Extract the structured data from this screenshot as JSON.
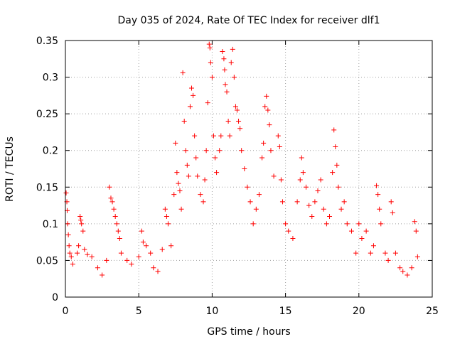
{
  "chart_data": {
    "type": "scatter",
    "title": "Day 035 of 2024, Rate Of TEC Index for receiver dlf1",
    "xlabel": "GPS time / hours",
    "ylabel": "ROTI / TECUs",
    "xlim": [
      0,
      25
    ],
    "ylim": [
      0,
      0.35
    ],
    "xticks": [
      0,
      5,
      10,
      15,
      20,
      25
    ],
    "yticks": [
      0,
      0.05,
      0.1,
      0.15,
      0.2,
      0.25,
      0.3,
      0.35
    ],
    "grid": true,
    "marker": "+",
    "marker_color": "#ff0000",
    "series": [
      {
        "points": [
          [
            0.05,
            0.142
          ],
          [
            0.1,
            0.13
          ],
          [
            0.12,
            0.118
          ],
          [
            0.15,
            0.1
          ],
          [
            0.2,
            0.085
          ],
          [
            0.25,
            0.07
          ],
          [
            0.3,
            0.06
          ],
          [
            0.4,
            0.055
          ],
          [
            0.5,
            0.045
          ],
          [
            0.8,
            0.06
          ],
          [
            0.9,
            0.07
          ],
          [
            1.0,
            0.11
          ],
          [
            1.05,
            0.105
          ],
          [
            1.1,
            0.1
          ],
          [
            1.2,
            0.09
          ],
          [
            1.3,
            0.065
          ],
          [
            1.5,
            0.058
          ],
          [
            1.8,
            0.055
          ],
          [
            2.2,
            0.04
          ],
          [
            2.5,
            0.03
          ],
          [
            2.8,
            0.05
          ],
          [
            3.0,
            0.15
          ],
          [
            3.1,
            0.135
          ],
          [
            3.2,
            0.13
          ],
          [
            3.3,
            0.12
          ],
          [
            3.4,
            0.11
          ],
          [
            3.5,
            0.1
          ],
          [
            3.6,
            0.09
          ],
          [
            3.7,
            0.08
          ],
          [
            3.8,
            0.06
          ],
          [
            4.2,
            0.05
          ],
          [
            4.5,
            0.045
          ],
          [
            5.0,
            0.055
          ],
          [
            5.2,
            0.09
          ],
          [
            5.3,
            0.075
          ],
          [
            5.5,
            0.07
          ],
          [
            5.8,
            0.06
          ],
          [
            6.0,
            0.04
          ],
          [
            6.3,
            0.035
          ],
          [
            6.6,
            0.065
          ],
          [
            6.8,
            0.12
          ],
          [
            6.9,
            0.11
          ],
          [
            7.0,
            0.1
          ],
          [
            7.2,
            0.07
          ],
          [
            7.4,
            0.14
          ],
          [
            7.5,
            0.21
          ],
          [
            7.6,
            0.17
          ],
          [
            7.7,
            0.155
          ],
          [
            7.8,
            0.145
          ],
          [
            7.9,
            0.12
          ],
          [
            8.0,
            0.306
          ],
          [
            8.1,
            0.24
          ],
          [
            8.2,
            0.2
          ],
          [
            8.3,
            0.18
          ],
          [
            8.4,
            0.165
          ],
          [
            8.5,
            0.26
          ],
          [
            8.6,
            0.285
          ],
          [
            8.7,
            0.275
          ],
          [
            8.8,
            0.22
          ],
          [
            8.9,
            0.19
          ],
          [
            9.0,
            0.165
          ],
          [
            9.2,
            0.14
          ],
          [
            9.4,
            0.13
          ],
          [
            9.5,
            0.16
          ],
          [
            9.6,
            0.2
          ],
          [
            9.7,
            0.265
          ],
          [
            9.8,
            0.345
          ],
          [
            9.85,
            0.34
          ],
          [
            9.9,
            0.32
          ],
          [
            10.0,
            0.3
          ],
          [
            10.1,
            0.22
          ],
          [
            10.2,
            0.19
          ],
          [
            10.3,
            0.17
          ],
          [
            10.5,
            0.2
          ],
          [
            10.6,
            0.22
          ],
          [
            10.7,
            0.335
          ],
          [
            10.8,
            0.325
          ],
          [
            10.85,
            0.31
          ],
          [
            10.9,
            0.29
          ],
          [
            11.0,
            0.28
          ],
          [
            11.1,
            0.24
          ],
          [
            11.2,
            0.22
          ],
          [
            11.3,
            0.32
          ],
          [
            11.4,
            0.338
          ],
          [
            11.5,
            0.3
          ],
          [
            11.6,
            0.26
          ],
          [
            11.7,
            0.255
          ],
          [
            11.8,
            0.24
          ],
          [
            11.9,
            0.23
          ],
          [
            12.0,
            0.2
          ],
          [
            12.2,
            0.175
          ],
          [
            12.4,
            0.15
          ],
          [
            12.6,
            0.13
          ],
          [
            12.8,
            0.1
          ],
          [
            13.0,
            0.12
          ],
          [
            13.2,
            0.14
          ],
          [
            13.4,
            0.19
          ],
          [
            13.5,
            0.21
          ],
          [
            13.6,
            0.26
          ],
          [
            13.7,
            0.274
          ],
          [
            13.8,
            0.255
          ],
          [
            13.9,
            0.235
          ],
          [
            14.0,
            0.2
          ],
          [
            14.2,
            0.165
          ],
          [
            14.5,
            0.22
          ],
          [
            14.6,
            0.205
          ],
          [
            14.7,
            0.16
          ],
          [
            14.8,
            0.13
          ],
          [
            15.0,
            0.1
          ],
          [
            15.2,
            0.09
          ],
          [
            15.5,
            0.08
          ],
          [
            15.8,
            0.13
          ],
          [
            16.0,
            0.16
          ],
          [
            16.1,
            0.19
          ],
          [
            16.2,
            0.17
          ],
          [
            16.4,
            0.15
          ],
          [
            16.6,
            0.125
          ],
          [
            16.8,
            0.11
          ],
          [
            17.0,
            0.13
          ],
          [
            17.2,
            0.145
          ],
          [
            17.4,
            0.16
          ],
          [
            17.6,
            0.12
          ],
          [
            17.8,
            0.1
          ],
          [
            18.0,
            0.11
          ],
          [
            18.2,
            0.17
          ],
          [
            18.3,
            0.228
          ],
          [
            18.4,
            0.205
          ],
          [
            18.5,
            0.18
          ],
          [
            18.6,
            0.15
          ],
          [
            18.8,
            0.12
          ],
          [
            19.0,
            0.13
          ],
          [
            19.2,
            0.1
          ],
          [
            19.5,
            0.09
          ],
          [
            19.8,
            0.06
          ],
          [
            20.0,
            0.1
          ],
          [
            20.2,
            0.08
          ],
          [
            20.5,
            0.09
          ],
          [
            20.8,
            0.06
          ],
          [
            21.0,
            0.07
          ],
          [
            21.2,
            0.152
          ],
          [
            21.3,
            0.14
          ],
          [
            21.4,
            0.12
          ],
          [
            21.5,
            0.1
          ],
          [
            21.8,
            0.06
          ],
          [
            22.0,
            0.05
          ],
          [
            22.2,
            0.13
          ],
          [
            22.3,
            0.115
          ],
          [
            22.5,
            0.06
          ],
          [
            22.8,
            0.04
          ],
          [
            23.0,
            0.035
          ],
          [
            23.3,
            0.03
          ],
          [
            23.6,
            0.04
          ],
          [
            23.8,
            0.103
          ],
          [
            23.9,
            0.09
          ],
          [
            24.0,
            0.055
          ]
        ]
      }
    ]
  }
}
